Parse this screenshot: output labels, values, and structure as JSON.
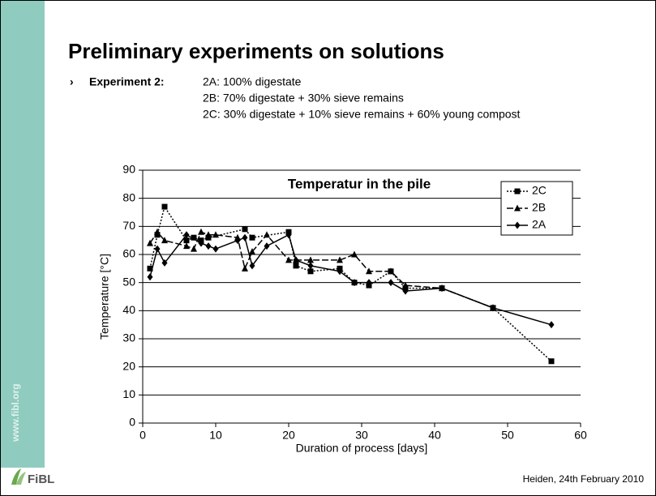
{
  "slide": {
    "title": "Preliminary experiments on solutions",
    "bullet_label": "Experiment 2:",
    "bullet_lines": [
      "2A: 100% digestate",
      "2B: 70% digestate + 30% sieve remains",
      "2C: 30% digestate + 10% sieve remains + 60% young compost"
    ],
    "website": "www.fibl.org",
    "logo": "FiBL",
    "footer": "Heiden, 24th February 2010"
  },
  "chart_data": {
    "type": "line",
    "title": "Temperatur in the pile",
    "x_label": "Duration of process [days]",
    "y_label": "Temperature [°C]",
    "xlim": [
      0,
      60
    ],
    "xticks": [
      0,
      10,
      20,
      30,
      40,
      50,
      60
    ],
    "ylim": [
      0,
      90
    ],
    "yticks": [
      0,
      10,
      20,
      30,
      40,
      50,
      60,
      70,
      80,
      90
    ],
    "grid": true,
    "legend": "upper right",
    "series": [
      {
        "name": "2C",
        "color": "#000000",
        "marker": "square",
        "line_style": "dotted",
        "x": [
          1,
          2,
          3,
          6,
          7,
          8,
          9,
          14,
          15,
          20,
          21,
          23,
          27,
          29,
          31,
          34,
          36,
          41,
          48,
          56
        ],
        "values": [
          55,
          67,
          77,
          65,
          66,
          65,
          66,
          69,
          66,
          68,
          56,
          54,
          55,
          50,
          49,
          54,
          48,
          48,
          41,
          22
        ]
      },
      {
        "name": "2B",
        "color": "#000000",
        "marker": "triangle",
        "line_style": "dashed",
        "x": [
          1,
          2,
          3,
          6,
          7,
          8,
          9,
          10,
          13,
          14,
          15,
          17,
          20,
          21,
          23,
          27,
          29,
          31,
          34,
          36,
          41,
          48
        ],
        "values": [
          64,
          68,
          65,
          63,
          62,
          68,
          67,
          67,
          66,
          55,
          61,
          67,
          58,
          58,
          58,
          58,
          60,
          54,
          54,
          49,
          48,
          41
        ]
      },
      {
        "name": "2A",
        "color": "#000000",
        "marker": "diamond",
        "line_style": "solid",
        "x": [
          1,
          2,
          3,
          6,
          8,
          9,
          10,
          13,
          14,
          15,
          17,
          20,
          21,
          23,
          27,
          29,
          31,
          34,
          36,
          41,
          48,
          56
        ],
        "values": [
          52,
          62,
          57,
          67,
          64,
          63,
          62,
          65,
          66,
          56,
          63,
          67,
          58,
          56,
          54,
          50,
          50,
          50,
          47,
          48,
          41,
          35
        ]
      }
    ]
  }
}
